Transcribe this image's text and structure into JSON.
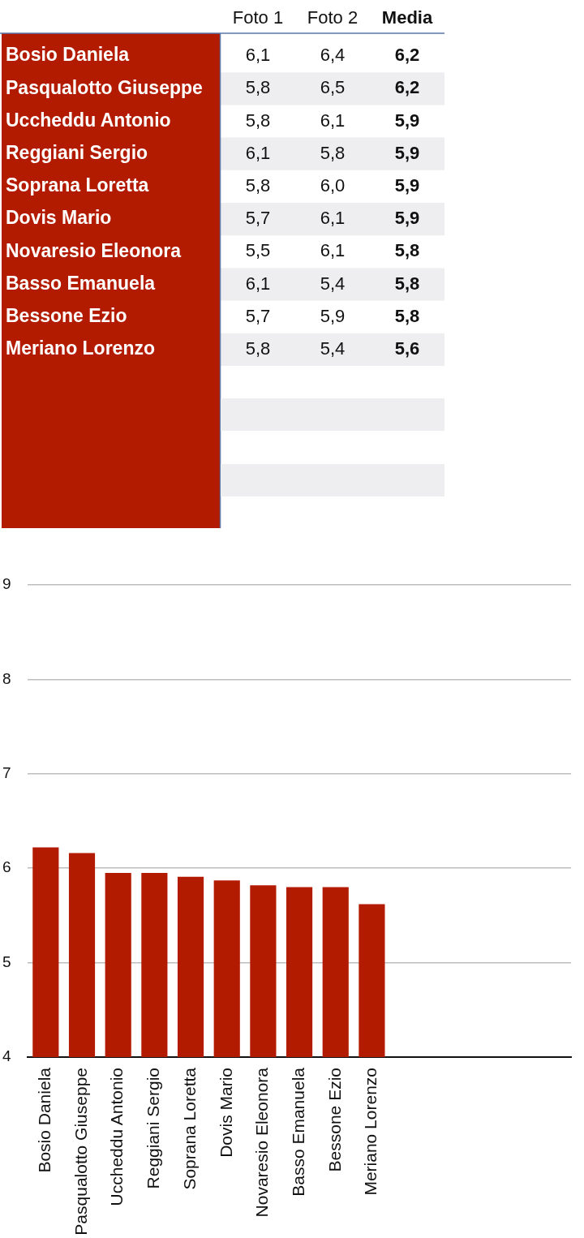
{
  "chart_data": [
    {
      "type": "heatmap",
      "categories": [
        "Foto 1",
        "Foto 2",
        "Media"
      ],
      "y_categories": [
        "Bosio Daniela",
        "Pasqualotto Giuseppe",
        "Uccheddu Antonio",
        "Reggiani Sergio",
        "Soprana Loretta",
        "Dovis Mario",
        "Novaresio Eleonora",
        "Basso Emanuela",
        "Bessone Ezio",
        "Meriano Lorenzo"
      ],
      "cells": [
        [
          6.1,
          6.4,
          6.2
        ],
        [
          5.8,
          6.5,
          6.2
        ],
        [
          5.8,
          6.1,
          5.9
        ],
        [
          6.1,
          5.8,
          5.9
        ],
        [
          5.8,
          6.0,
          5.9
        ],
        [
          5.7,
          6.1,
          5.9
        ],
        [
          5.5,
          6.1,
          5.8
        ],
        [
          6.1,
          5.4,
          5.8
        ],
        [
          5.7,
          5.9,
          5.8
        ],
        [
          5.8,
          5.4,
          5.6
        ]
      ],
      "cell_labels": [
        [
          "6,1",
          "6,4",
          "6,2"
        ],
        [
          "5,8",
          "6,5",
          "6,2"
        ],
        [
          "5,8",
          "6,1",
          "5,9"
        ],
        [
          "6,1",
          "5,8",
          "5,9"
        ],
        [
          "5,8",
          "6,0",
          "5,9"
        ],
        [
          "5,7",
          "6,1",
          "5,9"
        ],
        [
          "5,5",
          "6,1",
          "5,8"
        ],
        [
          "6,1",
          "5,4",
          "5,8"
        ],
        [
          "5,7",
          "5,9",
          "5,8"
        ],
        [
          "5,8",
          "5,4",
          "5,6"
        ]
      ]
    },
    {
      "type": "bar",
      "categories": [
        "Bosio Daniela",
        "Pasqualotto Giuseppe",
        "Uccheddu Antonio",
        "Reggiani Sergio",
        "Soprana Loretta",
        "Dovis Mario",
        "Novaresio Eleonora",
        "Basso Emanuela",
        "Bessone Ezio",
        "Meriano Lorenzo",
        null,
        null,
        null,
        null,
        null
      ],
      "values": [
        6.22,
        6.16,
        5.95,
        5.95,
        5.91,
        5.87,
        5.82,
        5.8,
        5.8,
        5.62,
        null,
        null,
        null,
        null,
        null
      ],
      "color": "#b31b00",
      "ylim": [
        4,
        9
      ],
      "yticks": [
        4,
        5,
        6,
        7,
        8,
        9
      ],
      "grid": "y"
    }
  ]
}
